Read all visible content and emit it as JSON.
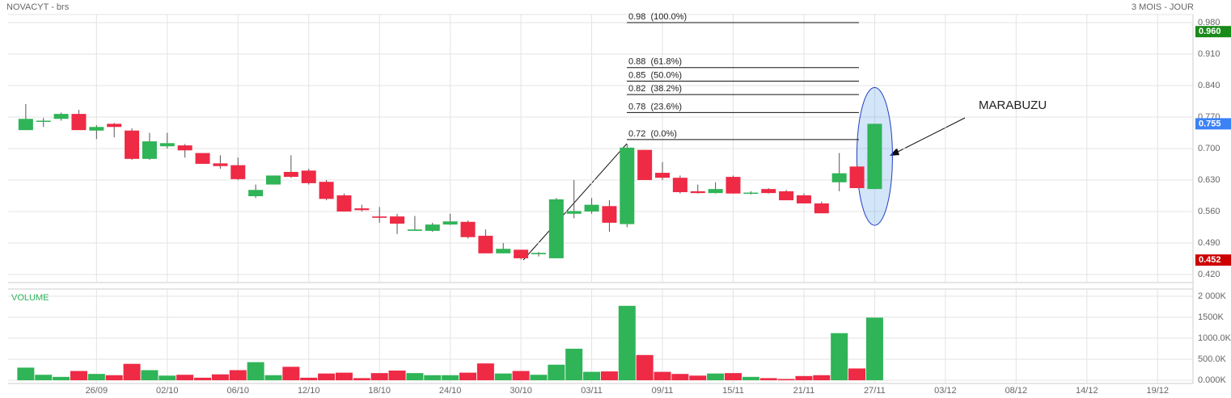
{
  "header": {
    "title": "NOVACYT - brs",
    "period": "3 MOIS - JOUR"
  },
  "chart_data": [
    {
      "type": "candlestick",
      "x": [
        0,
        1,
        2,
        3,
        4,
        5,
        6,
        7,
        8,
        9,
        10,
        11,
        12,
        13,
        14,
        15,
        16,
        17,
        18,
        19,
        20,
        21,
        22,
        23,
        24,
        25,
        26,
        27,
        28,
        29,
        30,
        31,
        32,
        33,
        34,
        35,
        36,
        37,
        38,
        39,
        40,
        41,
        42,
        43,
        44,
        45,
        46,
        47,
        48
      ],
      "open": [
        0.741,
        0.76,
        0.766,
        0.777,
        0.74,
        0.755,
        0.74,
        0.677,
        0.705,
        0.707,
        0.69,
        0.667,
        0.663,
        0.594,
        0.62,
        0.648,
        0.651,
        0.626,
        0.596,
        0.567,
        0.549,
        0.549,
        0.517,
        0.517,
        0.531,
        0.537,
        0.506,
        0.467,
        0.475,
        0.465,
        0.456,
        0.555,
        0.56,
        0.572,
        0.532,
        0.697,
        0.646,
        0.635,
        0.605,
        0.601,
        0.637,
        0.6,
        0.61,
        0.605,
        0.596,
        0.578,
        0.625,
        0.66,
        0.61
      ],
      "high": [
        0.799,
        0.768,
        0.78,
        0.786,
        0.752,
        0.757,
        0.745,
        0.735,
        0.735,
        0.71,
        0.69,
        0.685,
        0.68,
        0.62,
        0.64,
        0.685,
        0.655,
        0.63,
        0.6,
        0.575,
        0.57,
        0.555,
        0.55,
        0.535,
        0.555,
        0.54,
        0.52,
        0.49,
        0.475,
        0.47,
        0.59,
        0.63,
        0.59,
        0.585,
        0.71,
        0.697,
        0.67,
        0.64,
        0.62,
        0.625,
        0.64,
        0.605,
        0.612,
        0.608,
        0.6,
        0.582,
        0.69,
        0.665,
        0.755
      ],
      "low": [
        0.741,
        0.748,
        0.762,
        0.741,
        0.721,
        0.725,
        0.675,
        0.675,
        0.7,
        0.68,
        0.666,
        0.655,
        0.63,
        0.59,
        0.62,
        0.635,
        0.62,
        0.585,
        0.56,
        0.56,
        0.535,
        0.51,
        0.517,
        0.515,
        0.53,
        0.5,
        0.467,
        0.467,
        0.453,
        0.46,
        0.456,
        0.545,
        0.555,
        0.515,
        0.525,
        0.63,
        0.63,
        0.6,
        0.6,
        0.6,
        0.6,
        0.598,
        0.6,
        0.585,
        0.578,
        0.556,
        0.605,
        0.612,
        0.61
      ],
      "close": [
        0.766,
        0.762,
        0.777,
        0.741,
        0.748,
        0.748,
        0.677,
        0.716,
        0.712,
        0.696,
        0.666,
        0.661,
        0.632,
        0.608,
        0.64,
        0.637,
        0.623,
        0.588,
        0.56,
        0.563,
        0.546,
        0.533,
        0.52,
        0.531,
        0.538,
        0.503,
        0.467,
        0.477,
        0.456,
        0.468,
        0.587,
        0.561,
        0.575,
        0.535,
        0.702,
        0.63,
        0.635,
        0.603,
        0.601,
        0.61,
        0.6,
        0.602,
        0.601,
        0.585,
        0.578,
        0.556,
        0.645,
        0.612,
        0.755
      ],
      "up_color": "#2fb457",
      "down_color": "#ee2a45",
      "xlim": [
        -1,
        66
      ],
      "xticks": [
        {
          "value": 4,
          "label": "26/09"
        },
        {
          "value": 8,
          "label": "02/10"
        },
        {
          "value": 12,
          "label": "06/10"
        },
        {
          "value": 16,
          "label": "12/10"
        },
        {
          "value": 20,
          "label": "18/10"
        },
        {
          "value": 24,
          "label": "24/10"
        },
        {
          "value": 28,
          "label": "30/10"
        },
        {
          "value": 32,
          "label": "03/11"
        },
        {
          "value": 36,
          "label": "09/11"
        },
        {
          "value": 40,
          "label": "15/11"
        },
        {
          "value": 44,
          "label": "21/11"
        },
        {
          "value": 48,
          "label": "27/11"
        },
        {
          "value": 52,
          "label": "03/12"
        },
        {
          "value": 56,
          "label": "08/12"
        },
        {
          "value": 60,
          "label": "14/12"
        },
        {
          "value": 64,
          "label": "19/12"
        }
      ],
      "ylim": [
        0.402,
        0.998
      ],
      "yticks": [
        {
          "value": 0.98,
          "label": "0.980"
        },
        {
          "value": 0.91,
          "label": "0.910"
        },
        {
          "value": 0.84,
          "label": "0.840"
        },
        {
          "value": 0.77,
          "label": "0.770"
        },
        {
          "value": 0.7,
          "label": "0.700"
        },
        {
          "value": 0.63,
          "label": "0.630"
        },
        {
          "value": 0.56,
          "label": "0.560"
        },
        {
          "value": 0.49,
          "label": "0.490"
        },
        {
          "value": 0.42,
          "label": "0.420"
        }
      ],
      "price_badges": [
        {
          "value": 0.96,
          "label": "0.960",
          "color": "#1a8a1a"
        },
        {
          "value": 0.755,
          "label": "0.755",
          "color": "#3b82f6"
        },
        {
          "value": 0.452,
          "label": "0.452",
          "color": "#cc0000"
        }
      ],
      "fib_levels": [
        {
          "value": 0.98,
          "label": "0.98  (100.0%)"
        },
        {
          "value": 0.88,
          "label": "0.88  (61.8%)"
        },
        {
          "value": 0.85,
          "label": "0.85  (50.0%)"
        },
        {
          "value": 0.82,
          "label": "0.82  (38.2%)"
        },
        {
          "value": 0.78,
          "label": "0.78  (23.6%)"
        },
        {
          "value": 0.72,
          "label": "0.72  (0.0%)"
        }
      ],
      "annotation": "MARABUZU",
      "grid": true
    },
    {
      "type": "bar",
      "title": "VOLUME",
      "values": [
        300,
        130,
        80,
        220,
        150,
        120,
        390,
        240,
        110,
        130,
        60,
        140,
        240,
        430,
        120,
        320,
        60,
        160,
        180,
        50,
        170,
        230,
        170,
        120,
        120,
        180,
        400,
        160,
        220,
        130,
        370,
        750,
        200,
        210,
        1770,
        600,
        200,
        150,
        110,
        160,
        170,
        80,
        50,
        30,
        100,
        120,
        1120,
        280,
        1490
      ],
      "ylim": [
        0,
        2170
      ],
      "yticks": [
        {
          "value": 2000,
          "label": "2 000K"
        },
        {
          "value": 1500,
          "label": "1500K"
        },
        {
          "value": 1000,
          "label": "1000.0K"
        },
        {
          "value": 500,
          "label": "500.0K"
        },
        {
          "value": 0,
          "label": "0.000K"
        }
      ],
      "grid": true
    }
  ]
}
